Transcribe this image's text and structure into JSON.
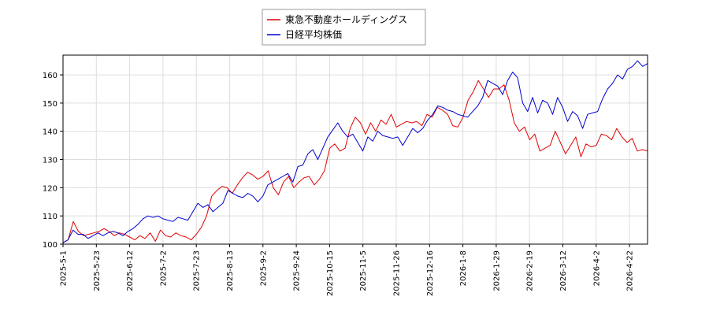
{
  "chart_data": {
    "type": "line",
    "x_ticks": [
      "2025-5-1",
      "2025-5-23",
      "2025-6-12",
      "2025-7-2",
      "2025-7-23",
      "2025-8-13",
      "2025-9-2",
      "2025-9-24",
      "2025-10-15",
      "2025-11-5",
      "2025-11-26",
      "2025-12-16",
      "2026-1-8",
      "2026-1-29",
      "2026-2-19",
      "2026-3-12",
      "2026-4-2",
      "2026-4-22"
    ],
    "ylim": [
      100,
      167
    ],
    "y_ticks": [
      100,
      110,
      120,
      130,
      140,
      150,
      160
    ],
    "grid": true,
    "legend_position": "top-center",
    "series": [
      {
        "name": "東急不動産ホールディングス",
        "color": "#e00000",
        "values": [
          100.5,
          101.5,
          108,
          104.5,
          103,
          103.5,
          104,
          104.5,
          105.5,
          104.5,
          103,
          104,
          103.5,
          102.5,
          101.5,
          103,
          102,
          104,
          101,
          105,
          103,
          102.5,
          104,
          103,
          102.5,
          101.5,
          103.5,
          106,
          110,
          117,
          119,
          120.5,
          120,
          118,
          121,
          123.5,
          125.5,
          124.5,
          123,
          124,
          126,
          120,
          117.5,
          122,
          124,
          120,
          122,
          123.5,
          124,
          121,
          123,
          126,
          134,
          135.5,
          133,
          134,
          141,
          145,
          143,
          139,
          143,
          140,
          144,
          142.5,
          146,
          141.5,
          142.5,
          143.5,
          143,
          143.5,
          142,
          146,
          145,
          148.5,
          147.5,
          146,
          142,
          141.5,
          145,
          151,
          154,
          158,
          155,
          152,
          155,
          155,
          156.5,
          151,
          143,
          140,
          141.5,
          137,
          139,
          133,
          134,
          135,
          140,
          136,
          132,
          135,
          138,
          131,
          135.5,
          134.5,
          135,
          139,
          138.5,
          137,
          141,
          138,
          136,
          137.5,
          133,
          133.5,
          133
        ]
      },
      {
        "name": "日経平均株価",
        "color": "#0000cc",
        "values": [
          100.5,
          101.5,
          105,
          103.5,
          103.5,
          102,
          103,
          104,
          103,
          104,
          104.5,
          104,
          103,
          104.5,
          105.5,
          107,
          109,
          110,
          109.5,
          110,
          109,
          108.5,
          108,
          109.5,
          109,
          108.5,
          111.5,
          114.5,
          113,
          114,
          111.5,
          113,
          114.5,
          119,
          118,
          117,
          116.5,
          118,
          117,
          115,
          117,
          121,
          122,
          123,
          124,
          125,
          122,
          127.5,
          128,
          132,
          133.5,
          130,
          134,
          138,
          140.5,
          143,
          140,
          138,
          139,
          136,
          133,
          138,
          136.5,
          140,
          138.5,
          138,
          137.5,
          138,
          135,
          138,
          141,
          139.5,
          141,
          144,
          146,
          149,
          148.5,
          147.5,
          147,
          146,
          145.5,
          145,
          147,
          149,
          152,
          158,
          157,
          156,
          153,
          158,
          161,
          159,
          150,
          147,
          152,
          146.5,
          151,
          150,
          146,
          152,
          148.5,
          143.5,
          147,
          145.5,
          141,
          146,
          146.5,
          147,
          151.5,
          155,
          157,
          160,
          158.5,
          162,
          163,
          165,
          163,
          164
        ]
      }
    ]
  }
}
